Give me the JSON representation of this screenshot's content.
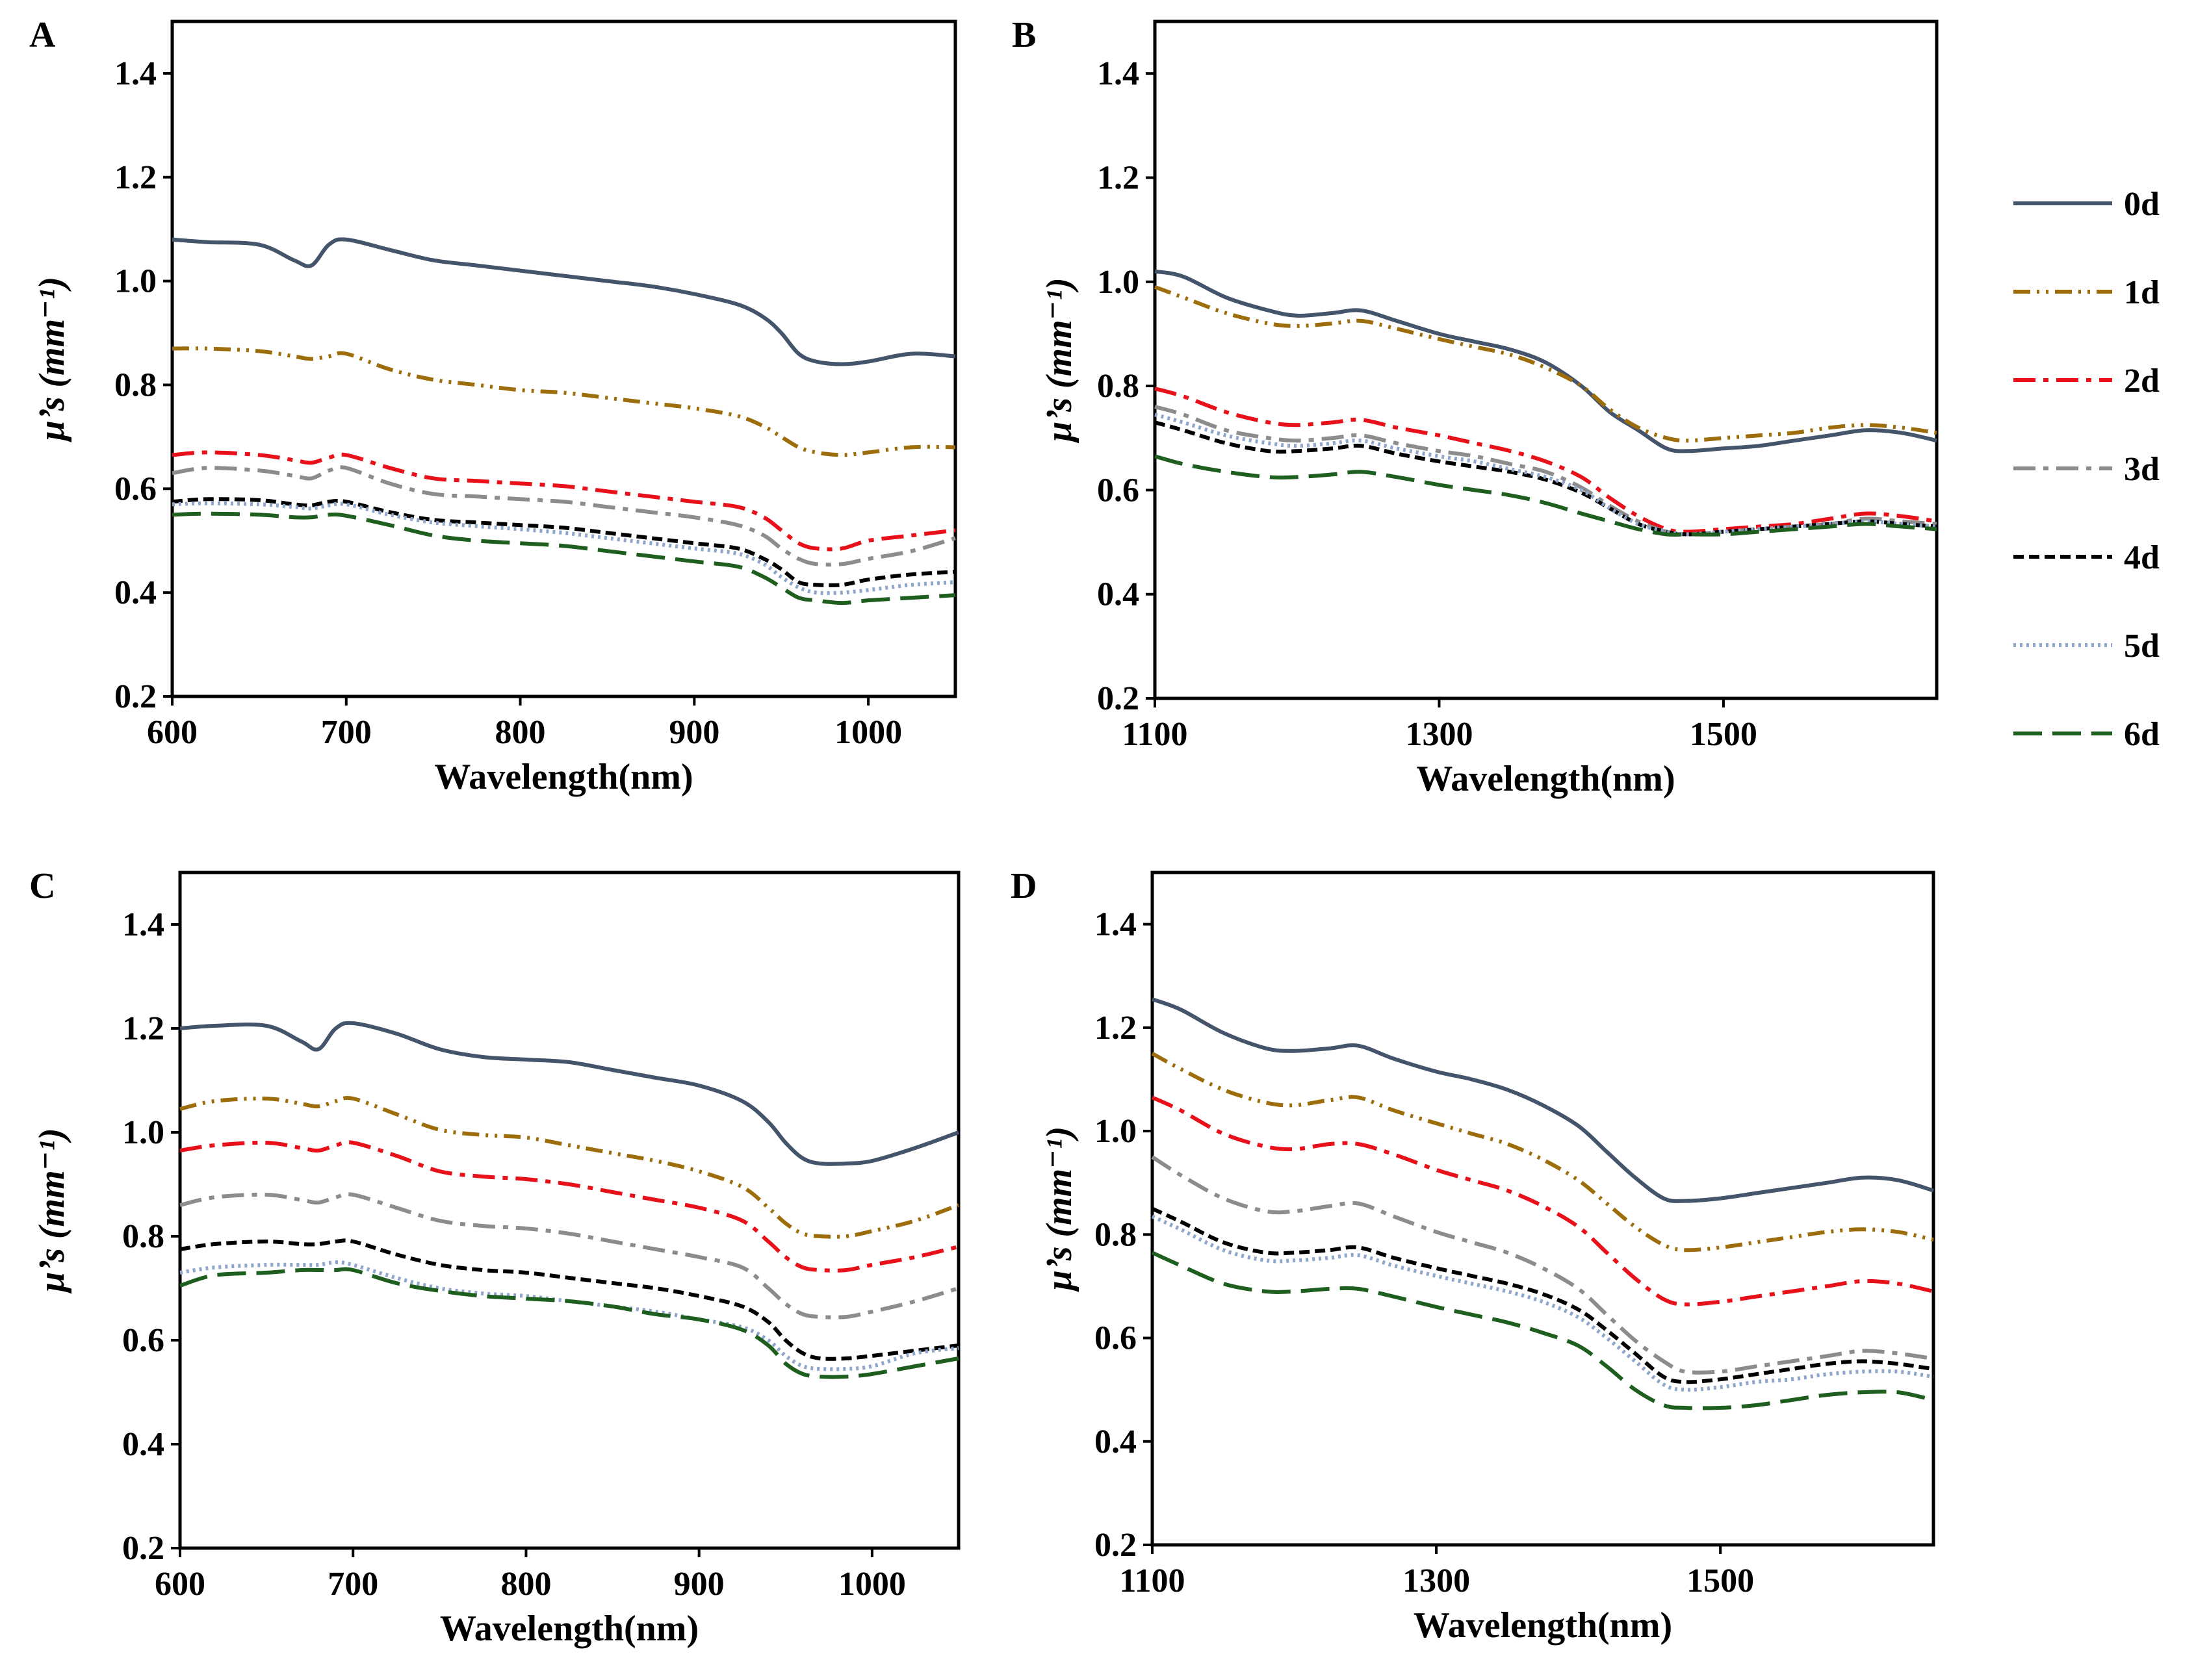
{
  "legend": {
    "entries": [
      {
        "name": "0d",
        "color": "#44546A",
        "dash": "solid"
      },
      {
        "name": "1d",
        "color": "#9C6D0A",
        "dash": "dash-dot-dot"
      },
      {
        "name": "2d",
        "color": "#E8111A",
        "dash": "dash-dot"
      },
      {
        "name": "3d",
        "color": "#8C8C8C",
        "dash": "dash-dot"
      },
      {
        "name": "4d",
        "color": "#000000",
        "dash": "short-dash"
      },
      {
        "name": "5d",
        "color": "#8EA6CC",
        "dash": "dot"
      },
      {
        "name": "6d",
        "color": "#1E5E1E",
        "dash": "long-dash"
      }
    ]
  },
  "chart_data": [
    {
      "panel": "A",
      "type": "line",
      "xlabel": "Wavelength(nm)",
      "ylabel": "µ’s (mm⁻¹)",
      "xlim": [
        600,
        1050
      ],
      "ylim": [
        0.2,
        1.5
      ],
      "xticks": [
        600,
        700,
        800,
        900,
        1000
      ],
      "yticks": [
        0.2,
        0.4,
        0.6,
        0.8,
        1.0,
        1.2,
        1.4
      ],
      "x": [
        600,
        620,
        650,
        670,
        680,
        690,
        700,
        725,
        750,
        775,
        800,
        825,
        850,
        875,
        900,
        925,
        940,
        950,
        960,
        970,
        985,
        1000,
        1025,
        1050
      ],
      "series": [
        {
          "name": "0d",
          "values": [
            1.08,
            1.075,
            1.07,
            1.04,
            1.03,
            1.07,
            1.08,
            1.06,
            1.04,
            1.03,
            1.02,
            1.01,
            1.0,
            0.99,
            0.975,
            0.955,
            0.93,
            0.9,
            0.86,
            0.845,
            0.84,
            0.845,
            0.86,
            0.855
          ]
        },
        {
          "name": "1d",
          "values": [
            0.87,
            0.87,
            0.865,
            0.855,
            0.85,
            0.855,
            0.86,
            0.83,
            0.81,
            0.8,
            0.79,
            0.785,
            0.775,
            0.765,
            0.755,
            0.74,
            0.72,
            0.7,
            0.68,
            0.67,
            0.665,
            0.67,
            0.68,
            0.68
          ]
        },
        {
          "name": "2d",
          "values": [
            0.665,
            0.67,
            0.665,
            0.655,
            0.65,
            0.66,
            0.665,
            0.64,
            0.62,
            0.615,
            0.61,
            0.605,
            0.595,
            0.585,
            0.575,
            0.565,
            0.545,
            0.52,
            0.495,
            0.485,
            0.485,
            0.5,
            0.51,
            0.52
          ]
        },
        {
          "name": "3d",
          "values": [
            0.63,
            0.64,
            0.635,
            0.625,
            0.62,
            0.635,
            0.64,
            0.61,
            0.59,
            0.585,
            0.58,
            0.575,
            0.565,
            0.555,
            0.545,
            0.53,
            0.51,
            0.485,
            0.465,
            0.455,
            0.455,
            0.465,
            0.48,
            0.505
          ]
        },
        {
          "name": "4d",
          "values": [
            0.575,
            0.58,
            0.578,
            0.57,
            0.568,
            0.575,
            0.575,
            0.555,
            0.54,
            0.535,
            0.53,
            0.525,
            0.515,
            0.505,
            0.495,
            0.485,
            0.465,
            0.445,
            0.42,
            0.415,
            0.415,
            0.425,
            0.435,
            0.44
          ]
        },
        {
          "name": "5d",
          "values": [
            0.57,
            0.572,
            0.57,
            0.565,
            0.562,
            0.568,
            0.57,
            0.55,
            0.535,
            0.528,
            0.522,
            0.515,
            0.505,
            0.495,
            0.485,
            0.475,
            0.455,
            0.43,
            0.41,
            0.4,
            0.4,
            0.405,
            0.415,
            0.42
          ]
        },
        {
          "name": "6d",
          "values": [
            0.55,
            0.552,
            0.55,
            0.545,
            0.545,
            0.55,
            0.548,
            0.53,
            0.51,
            0.5,
            0.495,
            0.49,
            0.48,
            0.47,
            0.46,
            0.45,
            0.43,
            0.41,
            0.39,
            0.385,
            0.38,
            0.385,
            0.39,
            0.395
          ]
        }
      ]
    },
    {
      "panel": "B",
      "type": "line",
      "xlabel": "Wavelength(nm)",
      "ylabel": "µ’s (mm⁻¹)",
      "xlim": [
        1100,
        1650
      ],
      "ylim": [
        0.2,
        1.5
      ],
      "xticks": [
        1100,
        1300,
        1500
      ],
      "yticks": [
        0.2,
        0.4,
        0.6,
        0.8,
        1.0,
        1.2,
        1.4
      ],
      "x": [
        1100,
        1120,
        1150,
        1180,
        1200,
        1225,
        1245,
        1270,
        1300,
        1325,
        1350,
        1375,
        1400,
        1420,
        1440,
        1460,
        1475,
        1500,
        1525,
        1550,
        1575,
        1600,
        1625,
        1650
      ],
      "series": [
        {
          "name": "0d",
          "values": [
            1.02,
            1.01,
            0.97,
            0.945,
            0.935,
            0.94,
            0.945,
            0.925,
            0.9,
            0.885,
            0.87,
            0.845,
            0.8,
            0.75,
            0.715,
            0.68,
            0.675,
            0.68,
            0.685,
            0.695,
            0.705,
            0.715,
            0.71,
            0.695
          ]
        },
        {
          "name": "1d",
          "values": [
            0.99,
            0.97,
            0.94,
            0.92,
            0.915,
            0.92,
            0.925,
            0.91,
            0.89,
            0.875,
            0.86,
            0.835,
            0.8,
            0.755,
            0.72,
            0.7,
            0.695,
            0.7,
            0.705,
            0.71,
            0.72,
            0.725,
            0.72,
            0.71
          ]
        },
        {
          "name": "2d",
          "values": [
            0.795,
            0.78,
            0.75,
            0.73,
            0.725,
            0.73,
            0.735,
            0.72,
            0.705,
            0.69,
            0.675,
            0.655,
            0.625,
            0.585,
            0.55,
            0.525,
            0.52,
            0.525,
            0.53,
            0.535,
            0.545,
            0.555,
            0.55,
            0.54
          ]
        },
        {
          "name": "3d",
          "values": [
            0.76,
            0.745,
            0.715,
            0.7,
            0.695,
            0.7,
            0.705,
            0.69,
            0.675,
            0.665,
            0.65,
            0.635,
            0.605,
            0.57,
            0.54,
            0.52,
            0.515,
            0.52,
            0.525,
            0.53,
            0.535,
            0.545,
            0.54,
            0.535
          ]
        },
        {
          "name": "4d",
          "values": [
            0.73,
            0.715,
            0.69,
            0.675,
            0.675,
            0.68,
            0.685,
            0.67,
            0.655,
            0.645,
            0.635,
            0.62,
            0.595,
            0.565,
            0.535,
            0.52,
            0.515,
            0.52,
            0.525,
            0.53,
            0.535,
            0.54,
            0.535,
            0.53
          ]
        },
        {
          "name": "5d",
          "values": [
            0.745,
            0.73,
            0.705,
            0.69,
            0.685,
            0.69,
            0.695,
            0.68,
            0.665,
            0.655,
            0.64,
            0.625,
            0.6,
            0.565,
            0.535,
            0.52,
            0.515,
            0.52,
            0.525,
            0.53,
            0.535,
            0.54,
            0.535,
            0.53
          ]
        },
        {
          "name": "6d",
          "values": [
            0.665,
            0.65,
            0.635,
            0.625,
            0.625,
            0.63,
            0.635,
            0.625,
            0.61,
            0.6,
            0.59,
            0.575,
            0.555,
            0.54,
            0.525,
            0.515,
            0.515,
            0.515,
            0.52,
            0.525,
            0.53,
            0.535,
            0.53,
            0.525
          ]
        }
      ]
    },
    {
      "panel": "C",
      "type": "line",
      "xlabel": "Wavelength(nm)",
      "ylabel": "µ’s (mm⁻¹)",
      "xlim": [
        600,
        1050
      ],
      "ylim": [
        0.2,
        1.5
      ],
      "xticks": [
        600,
        700,
        800,
        900,
        1000
      ],
      "yticks": [
        0.2,
        0.4,
        0.6,
        0.8,
        1.0,
        1.2,
        1.4
      ],
      "x": [
        600,
        620,
        650,
        670,
        680,
        690,
        700,
        725,
        750,
        775,
        800,
        825,
        850,
        875,
        900,
        925,
        940,
        950,
        960,
        970,
        985,
        1000,
        1025,
        1050
      ],
      "series": [
        {
          "name": "0d",
          "values": [
            1.2,
            1.205,
            1.205,
            1.175,
            1.16,
            1.2,
            1.21,
            1.19,
            1.16,
            1.145,
            1.14,
            1.135,
            1.12,
            1.105,
            1.09,
            1.06,
            1.02,
            0.98,
            0.95,
            0.94,
            0.94,
            0.945,
            0.97,
            1.0
          ]
        },
        {
          "name": "1d",
          "values": [
            1.045,
            1.06,
            1.065,
            1.055,
            1.05,
            1.06,
            1.065,
            1.035,
            1.005,
            0.995,
            0.99,
            0.975,
            0.96,
            0.945,
            0.925,
            0.895,
            0.855,
            0.825,
            0.805,
            0.8,
            0.8,
            0.81,
            0.83,
            0.86
          ]
        },
        {
          "name": "2d",
          "values": [
            0.965,
            0.975,
            0.98,
            0.97,
            0.965,
            0.975,
            0.98,
            0.955,
            0.925,
            0.915,
            0.91,
            0.9,
            0.885,
            0.87,
            0.855,
            0.83,
            0.79,
            0.76,
            0.74,
            0.735,
            0.735,
            0.745,
            0.76,
            0.78
          ]
        },
        {
          "name": "3d",
          "values": [
            0.86,
            0.875,
            0.88,
            0.87,
            0.865,
            0.875,
            0.88,
            0.855,
            0.83,
            0.82,
            0.815,
            0.805,
            0.79,
            0.775,
            0.76,
            0.74,
            0.7,
            0.67,
            0.65,
            0.645,
            0.645,
            0.655,
            0.675,
            0.7
          ]
        },
        {
          "name": "4d",
          "values": [
            0.775,
            0.785,
            0.79,
            0.785,
            0.785,
            0.79,
            0.79,
            0.765,
            0.745,
            0.735,
            0.73,
            0.72,
            0.71,
            0.7,
            0.685,
            0.665,
            0.635,
            0.6,
            0.575,
            0.565,
            0.565,
            0.57,
            0.58,
            0.59
          ]
        },
        {
          "name": "5d",
          "values": [
            0.73,
            0.74,
            0.745,
            0.745,
            0.745,
            0.75,
            0.745,
            0.72,
            0.7,
            0.69,
            0.685,
            0.675,
            0.665,
            0.655,
            0.64,
            0.625,
            0.6,
            0.57,
            0.55,
            0.545,
            0.545,
            0.55,
            0.575,
            0.585
          ]
        },
        {
          "name": "6d",
          "values": [
            0.705,
            0.725,
            0.73,
            0.735,
            0.735,
            0.735,
            0.735,
            0.71,
            0.695,
            0.685,
            0.68,
            0.675,
            0.665,
            0.65,
            0.64,
            0.62,
            0.59,
            0.555,
            0.535,
            0.53,
            0.53,
            0.535,
            0.55,
            0.565
          ]
        }
      ]
    },
    {
      "panel": "D",
      "type": "line",
      "xlabel": "Wavelength(nm)",
      "ylabel": "µ’s (mm⁻¹)",
      "xlim": [
        1100,
        1650
      ],
      "ylim": [
        0.2,
        1.5
      ],
      "xticks": [
        1100,
        1300,
        1500
      ],
      "yticks": [
        0.2,
        0.4,
        0.6,
        0.8,
        1.0,
        1.2,
        1.4
      ],
      "x": [
        1100,
        1120,
        1150,
        1180,
        1200,
        1225,
        1245,
        1270,
        1300,
        1325,
        1350,
        1375,
        1400,
        1420,
        1440,
        1460,
        1475,
        1500,
        1525,
        1550,
        1575,
        1600,
        1625,
        1650
      ],
      "series": [
        {
          "name": "0d",
          "values": [
            1.255,
            1.235,
            1.19,
            1.16,
            1.155,
            1.16,
            1.165,
            1.14,
            1.115,
            1.1,
            1.08,
            1.05,
            1.01,
            0.96,
            0.91,
            0.87,
            0.865,
            0.87,
            0.88,
            0.89,
            0.9,
            0.91,
            0.905,
            0.885
          ]
        },
        {
          "name": "1d",
          "values": [
            1.15,
            1.12,
            1.08,
            1.055,
            1.05,
            1.06,
            1.065,
            1.04,
            1.015,
            0.995,
            0.975,
            0.945,
            0.905,
            0.86,
            0.815,
            0.78,
            0.77,
            0.775,
            0.785,
            0.795,
            0.805,
            0.81,
            0.805,
            0.79
          ]
        },
        {
          "name": "2d",
          "values": [
            1.065,
            1.04,
            0.995,
            0.97,
            0.965,
            0.975,
            0.975,
            0.955,
            0.925,
            0.905,
            0.885,
            0.855,
            0.815,
            0.765,
            0.715,
            0.675,
            0.665,
            0.67,
            0.68,
            0.69,
            0.7,
            0.71,
            0.705,
            0.69
          ]
        },
        {
          "name": "3d",
          "values": [
            0.95,
            0.915,
            0.87,
            0.845,
            0.845,
            0.855,
            0.86,
            0.835,
            0.805,
            0.785,
            0.765,
            0.735,
            0.695,
            0.645,
            0.595,
            0.555,
            0.535,
            0.535,
            0.545,
            0.555,
            0.565,
            0.575,
            0.57,
            0.56
          ]
        },
        {
          "name": "4d",
          "values": [
            0.85,
            0.825,
            0.785,
            0.765,
            0.765,
            0.77,
            0.775,
            0.755,
            0.735,
            0.72,
            0.705,
            0.685,
            0.655,
            0.615,
            0.57,
            0.525,
            0.515,
            0.52,
            0.53,
            0.54,
            0.55,
            0.555,
            0.55,
            0.54
          ]
        },
        {
          "name": "5d",
          "values": [
            0.835,
            0.81,
            0.77,
            0.75,
            0.75,
            0.755,
            0.76,
            0.74,
            0.72,
            0.705,
            0.69,
            0.67,
            0.64,
            0.6,
            0.555,
            0.51,
            0.5,
            0.505,
            0.515,
            0.52,
            0.53,
            0.535,
            0.535,
            0.525
          ]
        },
        {
          "name": "6d",
          "values": [
            0.765,
            0.74,
            0.705,
            0.69,
            0.69,
            0.695,
            0.695,
            0.68,
            0.66,
            0.645,
            0.63,
            0.61,
            0.585,
            0.545,
            0.5,
            0.47,
            0.465,
            0.465,
            0.47,
            0.48,
            0.49,
            0.495,
            0.495,
            0.48
          ]
        }
      ]
    }
  ]
}
